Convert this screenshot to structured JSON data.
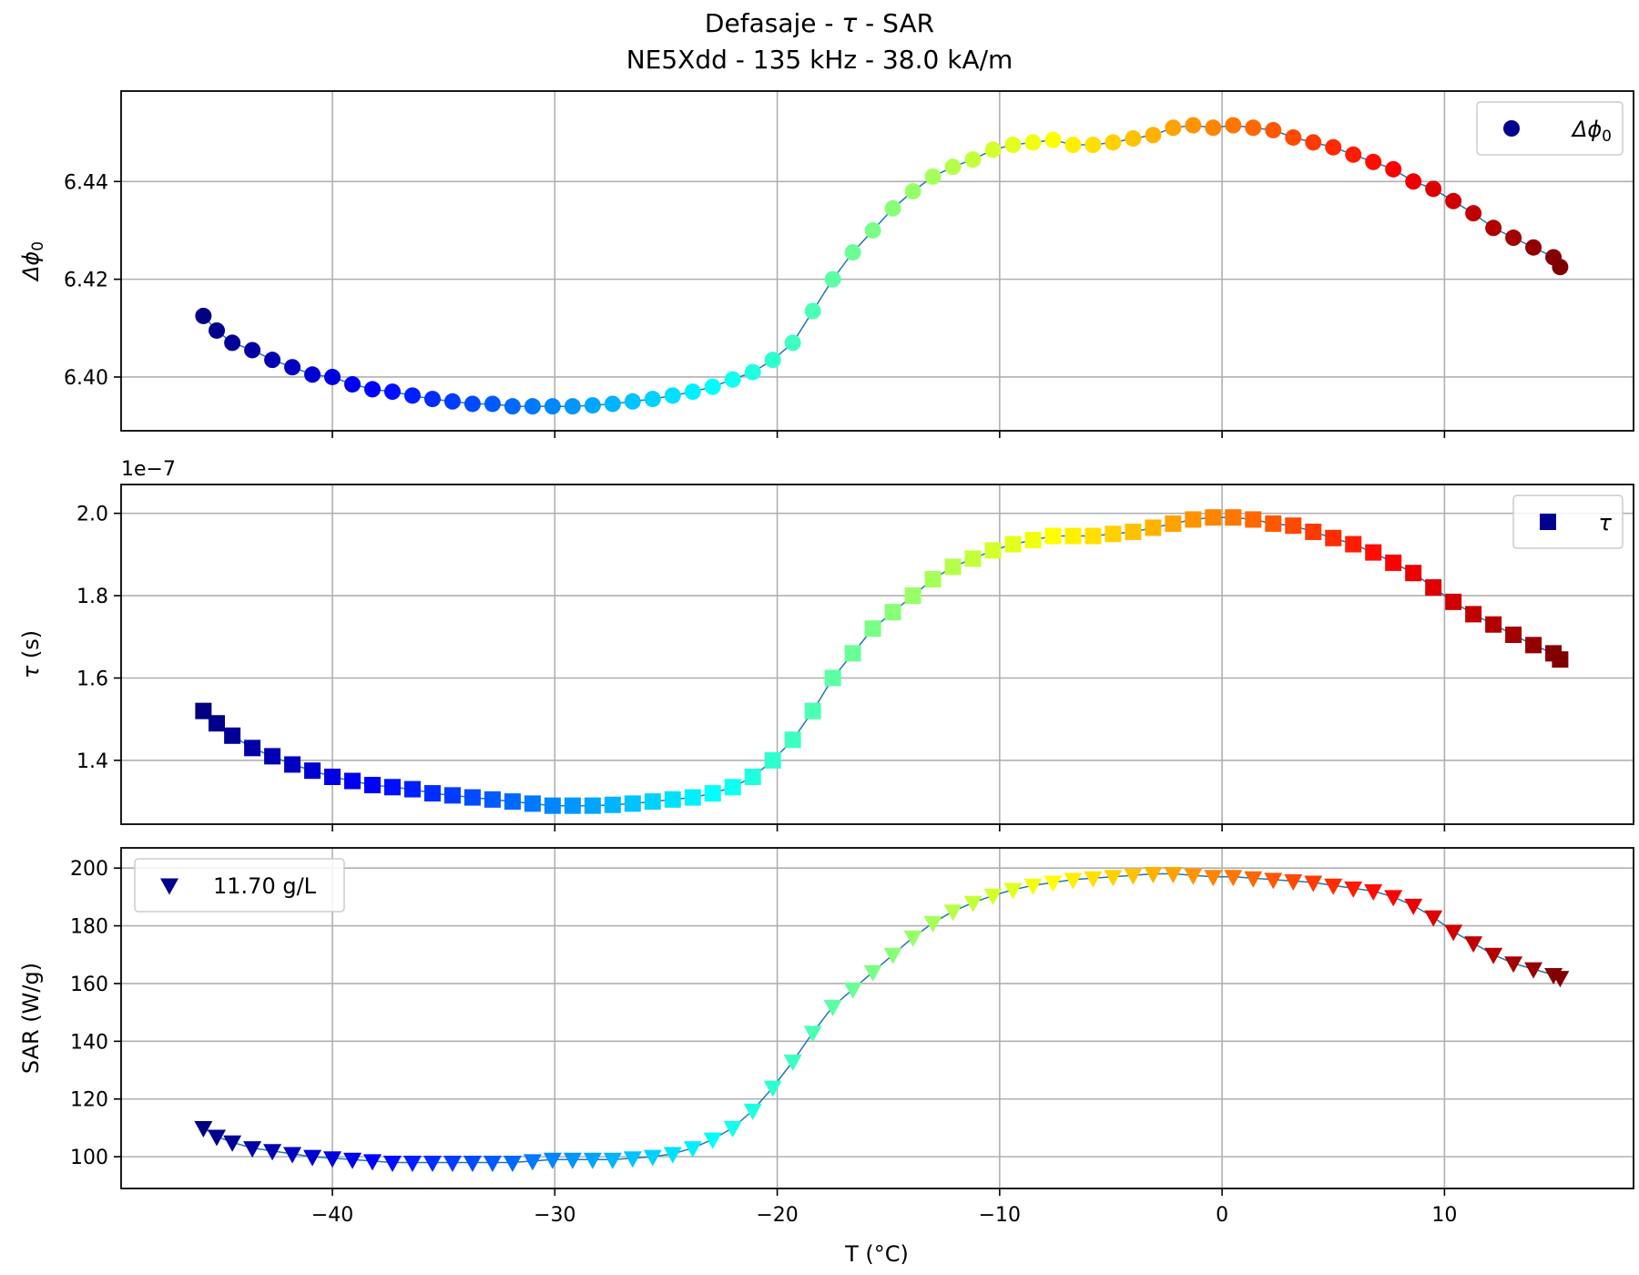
{
  "figure": {
    "title_line1_pre": "Defasaje - ",
    "title_line1_sym": "τ",
    "title_line1_post": " - SAR",
    "title_line2": "NE5Xdd - 135 kHz - 38.0 kA/m",
    "xlabel": "T (°C)"
  },
  "chart_data": [
    {
      "type": "scatter",
      "marker": "circle",
      "ylabel_sym": "Δϕ",
      "ylabel_sub": "0",
      "legend": {
        "sym": "Δϕ",
        "sub": "0",
        "position": "upper right"
      },
      "xlim": [
        -49.5,
        18.5
      ],
      "ylim": [
        6.389,
        6.4585
      ],
      "x_ticks": [
        -40,
        -30,
        -20,
        -10,
        0,
        10
      ],
      "y_ticks": [
        6.4,
        6.42,
        6.44
      ],
      "y_tick_labels": [
        "6.40",
        "6.42",
        "6.44"
      ],
      "grid": true,
      "tick_labels_x_visible": false,
      "x": [
        -45.8,
        -45.2,
        -44.5,
        -43.6,
        -42.7,
        -41.8,
        -40.9,
        -40.0,
        -39.1,
        -38.2,
        -37.3,
        -36.4,
        -35.5,
        -34.6,
        -33.7,
        -32.8,
        -31.9,
        -31.0,
        -30.1,
        -29.2,
        -28.3,
        -27.4,
        -26.5,
        -25.6,
        -24.7,
        -23.8,
        -22.9,
        -22.0,
        -21.1,
        -20.2,
        -19.3,
        -18.4,
        -17.5,
        -16.6,
        -15.7,
        -14.8,
        -13.9,
        -13.0,
        -12.1,
        -11.2,
        -10.3,
        -9.4,
        -8.5,
        -7.6,
        -6.7,
        -5.8,
        -4.9,
        -4.0,
        -3.1,
        -2.2,
        -1.3,
        -0.4,
        0.5,
        1.4,
        2.3,
        3.2,
        4.1,
        5.0,
        5.9,
        6.8,
        7.7,
        8.6,
        9.5,
        10.4,
        11.3,
        12.2,
        13.1,
        14.0,
        14.9,
        15.2
      ],
      "y": [
        6.4125,
        6.4095,
        6.407,
        6.4055,
        6.4035,
        6.402,
        6.4005,
        6.4,
        6.3985,
        6.3975,
        6.397,
        6.3962,
        6.3955,
        6.395,
        6.3945,
        6.3945,
        6.394,
        6.394,
        6.394,
        6.394,
        6.3942,
        6.3945,
        6.395,
        6.3955,
        6.3962,
        6.397,
        6.398,
        6.3995,
        6.401,
        6.4035,
        6.407,
        6.4135,
        6.42,
        6.4255,
        6.43,
        6.4345,
        6.438,
        6.441,
        6.443,
        6.4445,
        6.4465,
        6.4475,
        6.448,
        6.4485,
        6.4475,
        6.4475,
        6.448,
        6.4488,
        6.4495,
        6.451,
        6.4515,
        6.451,
        6.4515,
        6.451,
        6.4505,
        6.449,
        6.448,
        6.447,
        6.4455,
        6.444,
        6.4425,
        6.44,
        6.4385,
        6.436,
        6.4335,
        6.4305,
        6.4285,
        6.4265,
        6.4245,
        6.4225
      ]
    },
    {
      "type": "scatter",
      "marker": "square",
      "ylabel_sym": "τ",
      "ylabel_unit": " (s)",
      "offset_text": "1e−7",
      "legend": {
        "sym": "τ",
        "position": "upper right"
      },
      "xlim": [
        -49.5,
        18.5
      ],
      "ylim": [
        1.245,
        2.07
      ],
      "x_ticks": [
        -40,
        -30,
        -20,
        -10,
        0,
        10
      ],
      "y_ticks": [
        1.4,
        1.6,
        1.8,
        2.0
      ],
      "y_tick_labels": [
        "1.4",
        "1.6",
        "1.8",
        "2.0"
      ],
      "grid": true,
      "tick_labels_x_visible": false,
      "x": [
        -45.8,
        -45.2,
        -44.5,
        -43.6,
        -42.7,
        -41.8,
        -40.9,
        -40.0,
        -39.1,
        -38.2,
        -37.3,
        -36.4,
        -35.5,
        -34.6,
        -33.7,
        -32.8,
        -31.9,
        -31.0,
        -30.1,
        -29.2,
        -28.3,
        -27.4,
        -26.5,
        -25.6,
        -24.7,
        -23.8,
        -22.9,
        -22.0,
        -21.1,
        -20.2,
        -19.3,
        -18.4,
        -17.5,
        -16.6,
        -15.7,
        -14.8,
        -13.9,
        -13.0,
        -12.1,
        -11.2,
        -10.3,
        -9.4,
        -8.5,
        -7.6,
        -6.7,
        -5.8,
        -4.9,
        -4.0,
        -3.1,
        -2.2,
        -1.3,
        -0.4,
        0.5,
        1.4,
        2.3,
        3.2,
        4.1,
        5.0,
        5.9,
        6.8,
        7.7,
        8.6,
        9.5,
        10.4,
        11.3,
        12.2,
        13.1,
        14.0,
        14.9,
        15.2
      ],
      "y": [
        1.52,
        1.49,
        1.46,
        1.43,
        1.41,
        1.39,
        1.375,
        1.36,
        1.35,
        1.34,
        1.335,
        1.33,
        1.32,
        1.315,
        1.31,
        1.305,
        1.3,
        1.295,
        1.29,
        1.29,
        1.29,
        1.292,
        1.295,
        1.3,
        1.305,
        1.31,
        1.32,
        1.335,
        1.36,
        1.4,
        1.45,
        1.52,
        1.6,
        1.66,
        1.72,
        1.76,
        1.8,
        1.84,
        1.87,
        1.89,
        1.91,
        1.925,
        1.935,
        1.945,
        1.945,
        1.945,
        1.95,
        1.955,
        1.965,
        1.975,
        1.985,
        1.99,
        1.99,
        1.985,
        1.975,
        1.97,
        1.955,
        1.94,
        1.925,
        1.905,
        1.88,
        1.855,
        1.82,
        1.785,
        1.755,
        1.73,
        1.705,
        1.68,
        1.66,
        1.645
      ]
    },
    {
      "type": "scatter",
      "marker": "triangle_down",
      "ylabel": "SAR (W/g)",
      "legend": {
        "label": "11.70 g/L",
        "position": "upper left"
      },
      "xlim": [
        -49.5,
        18.5
      ],
      "ylim": [
        89,
        207
      ],
      "x_ticks": [
        -40,
        -30,
        -20,
        -10,
        0,
        10
      ],
      "x_tick_labels": [
        "−40",
        "−30",
        "−20",
        "−10",
        "0",
        "10"
      ],
      "y_ticks": [
        100,
        120,
        140,
        160,
        180,
        200
      ],
      "y_tick_labels": [
        "100",
        "120",
        "140",
        "160",
        "180",
        "200"
      ],
      "grid": true,
      "tick_labels_x_visible": true,
      "x": [
        -45.8,
        -45.2,
        -44.5,
        -43.6,
        -42.7,
        -41.8,
        -40.9,
        -40.0,
        -39.1,
        -38.2,
        -37.3,
        -36.4,
        -35.5,
        -34.6,
        -33.7,
        -32.8,
        -31.9,
        -31.0,
        -30.1,
        -29.2,
        -28.3,
        -27.4,
        -26.5,
        -25.6,
        -24.7,
        -23.8,
        -22.9,
        -22.0,
        -21.1,
        -20.2,
        -19.3,
        -18.4,
        -17.5,
        -16.6,
        -15.7,
        -14.8,
        -13.9,
        -13.0,
        -12.1,
        -11.2,
        -10.3,
        -9.4,
        -8.5,
        -7.6,
        -6.7,
        -5.8,
        -4.9,
        -4.0,
        -3.1,
        -2.2,
        -1.3,
        -0.4,
        0.5,
        1.4,
        2.3,
        3.2,
        4.1,
        5.0,
        5.9,
        6.8,
        7.7,
        8.6,
        9.5,
        10.4,
        11.3,
        12.2,
        13.1,
        14.0,
        14.9,
        15.2
      ],
      "y": [
        110,
        107,
        105,
        103,
        102,
        101,
        100,
        99.5,
        99,
        98.5,
        98,
        98,
        98,
        98,
        98,
        98,
        98,
        98.5,
        99,
        99,
        99,
        99,
        99.5,
        100,
        101,
        103,
        106,
        110,
        116,
        124,
        133,
        143,
        152,
        158,
        164,
        170,
        176,
        181,
        185,
        188,
        190.5,
        192.5,
        194,
        195,
        196,
        196.5,
        197,
        197.5,
        198,
        198,
        197.5,
        197,
        197,
        196.5,
        196,
        195.5,
        195,
        194,
        193,
        192,
        190,
        187,
        183,
        178,
        174,
        170,
        167,
        165,
        163,
        162
      ]
    }
  ]
}
